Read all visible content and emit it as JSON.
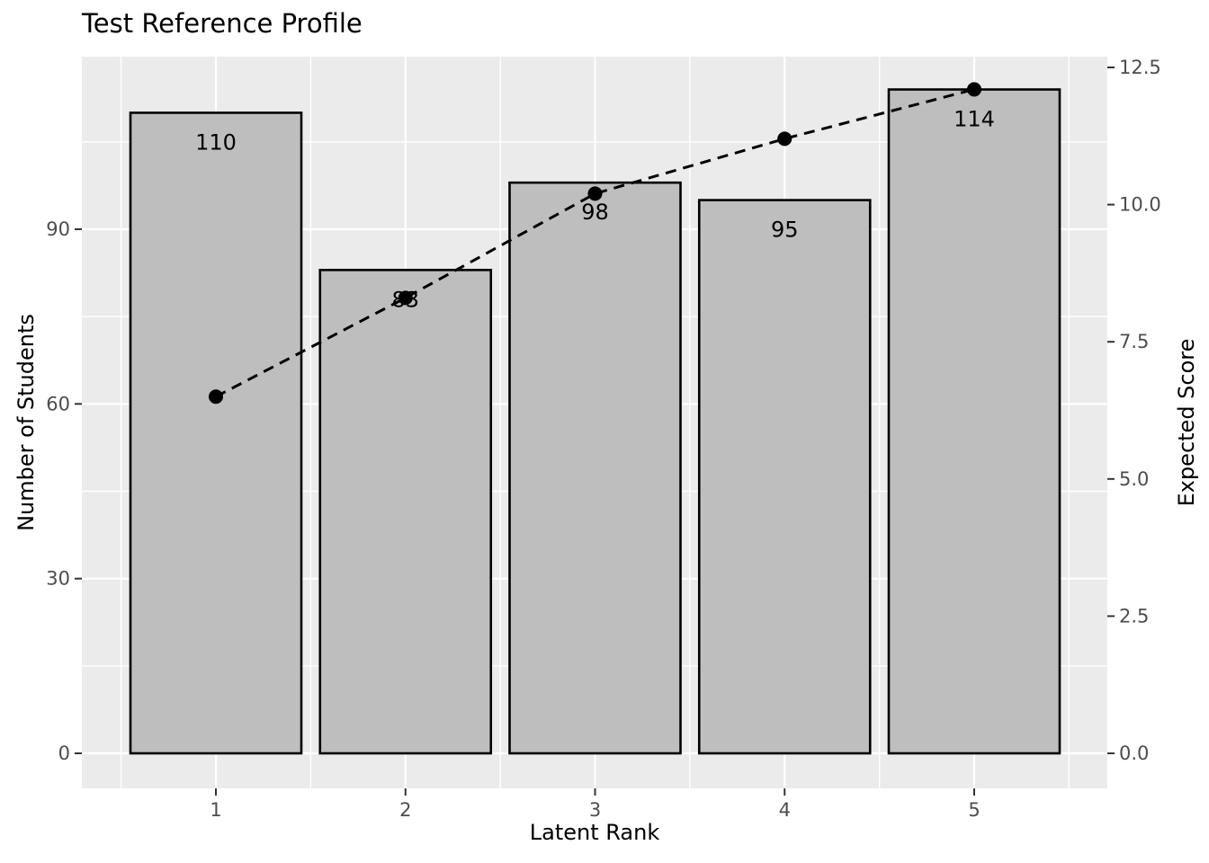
{
  "chart_data": {
    "type": "bar",
    "title": "Test Reference Profile",
    "xlabel": "Latent Rank",
    "ylabel_left": "Number of Students",
    "ylabel_right": "Expected Score",
    "categories": [
      "1",
      "2",
      "3",
      "4",
      "5"
    ],
    "series": [
      {
        "name": "Number of Students",
        "chart": "bar",
        "axis": "left",
        "values": [
          110,
          83,
          98,
          95,
          114
        ],
        "labels": [
          "110",
          "83",
          "98",
          "95",
          "114"
        ]
      },
      {
        "name": "Expected Score",
        "chart": "line",
        "axis": "right",
        "line_style": "dashed",
        "marker": "circle",
        "values": [
          6.5,
          8.3,
          10.2,
          11.2,
          12.1
        ]
      }
    ],
    "left_axis": {
      "ticks": [
        0,
        30,
        60,
        90
      ],
      "tick_labels": [
        "0",
        "30",
        "60",
        "90"
      ],
      "minor_ticks": [
        15,
        45,
        75,
        105
      ],
      "range": [
        0,
        119.6
      ]
    },
    "right_axis": {
      "ticks": [
        0,
        2.5,
        5,
        7.5,
        10,
        12.5
      ],
      "tick_labels": [
        "0.0",
        "2.5",
        "5.0",
        "7.5",
        "10.0",
        "12.5"
      ],
      "range": [
        0,
        12.7
      ]
    },
    "grid": "on",
    "legend": "none",
    "colors": {
      "panel_background": "#EBEBEB",
      "gridline": "#FFFFFF",
      "bar_fill": "#BEBEBE",
      "bar_stroke": "#000000",
      "line_color": "#000000",
      "marker_color": "#000000",
      "bar_label_color": "#000000",
      "tick_label_color": "#4D4D4D",
      "tick_mark_color": "#333333",
      "title_color": "#000000"
    }
  }
}
